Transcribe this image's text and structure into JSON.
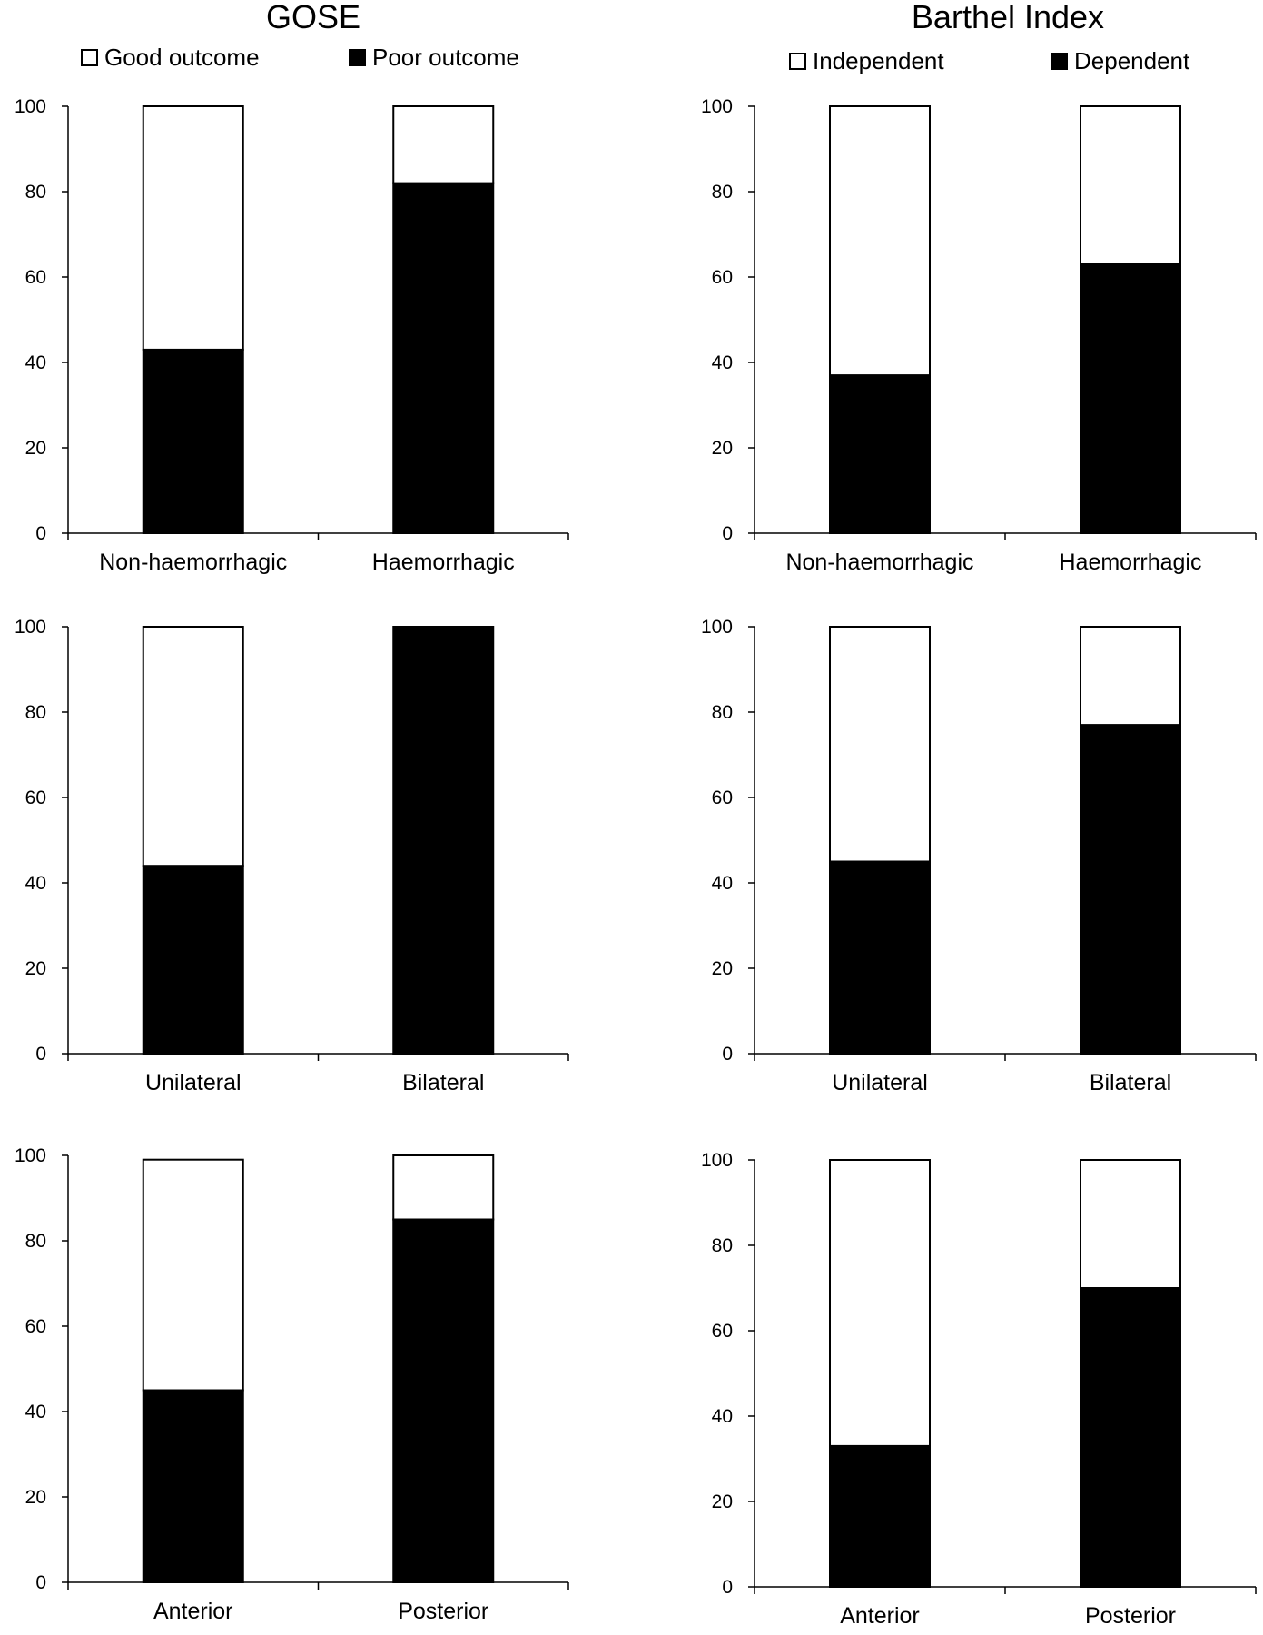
{
  "titles": {
    "gose": "GOSE",
    "barthel": "Barthel Index"
  },
  "legends": {
    "gose": [
      {
        "label": "Good outcome",
        "fill": "#ffffff"
      },
      {
        "label": "Poor outcome",
        "fill": "#000000"
      }
    ],
    "barthel": [
      {
        "label": "Independent",
        "fill": "#ffffff"
      },
      {
        "label": "Dependent",
        "fill": "#000000"
      }
    ]
  },
  "chart_data": [
    {
      "type": "bar",
      "stacked": true,
      "group": "GOSE",
      "categories": [
        "Non-haemorrhagic",
        "Haemorrhagic"
      ],
      "series": [
        {
          "name": "Poor outcome",
          "values": [
            43,
            82
          ]
        },
        {
          "name": "Good outcome",
          "values": [
            57,
            18
          ]
        }
      ],
      "ylim": [
        0,
        100
      ],
      "yticks": [
        0,
        20,
        40,
        60,
        80,
        100
      ]
    },
    {
      "type": "bar",
      "stacked": true,
      "group": "Barthel Index",
      "categories": [
        "Non-haemorrhagic",
        "Haemorrhagic"
      ],
      "series": [
        {
          "name": "Dependent",
          "values": [
            37,
            63
          ]
        },
        {
          "name": "Independent",
          "values": [
            63,
            37
          ]
        }
      ],
      "ylim": [
        0,
        100
      ],
      "yticks": [
        0,
        20,
        40,
        60,
        80,
        100
      ]
    },
    {
      "type": "bar",
      "stacked": true,
      "group": "GOSE",
      "categories": [
        "Unilateral",
        "Bilateral"
      ],
      "series": [
        {
          "name": "Poor outcome",
          "values": [
            44,
            100
          ]
        },
        {
          "name": "Good outcome",
          "values": [
            56,
            0
          ]
        }
      ],
      "ylim": [
        0,
        100
      ],
      "yticks": [
        0,
        20,
        40,
        60,
        80,
        100
      ]
    },
    {
      "type": "bar",
      "stacked": true,
      "group": "Barthel Index",
      "categories": [
        "Unilateral",
        "Bilateral"
      ],
      "series": [
        {
          "name": "Dependent",
          "values": [
            45,
            77
          ]
        },
        {
          "name": "Independent",
          "values": [
            55,
            23
          ]
        }
      ],
      "ylim": [
        0,
        100
      ],
      "yticks": [
        0,
        20,
        40,
        60,
        80,
        100
      ]
    },
    {
      "type": "bar",
      "stacked": true,
      "group": "GOSE",
      "categories": [
        "Anterior",
        "Posterior"
      ],
      "series": [
        {
          "name": "Poor outcome",
          "values": [
            45,
            85
          ]
        },
        {
          "name": "Good outcome",
          "values": [
            54,
            15
          ]
        }
      ],
      "ylim": [
        0,
        100
      ],
      "yticks": [
        0,
        20,
        40,
        60,
        80,
        100
      ]
    },
    {
      "type": "bar",
      "stacked": true,
      "group": "Barthel Index",
      "categories": [
        "Anterior",
        "Posterior"
      ],
      "series": [
        {
          "name": "Dependent",
          "values": [
            33,
            70
          ]
        },
        {
          "name": "Independent",
          "values": [
            67,
            30
          ]
        }
      ],
      "ylim": [
        0,
        100
      ],
      "yticks": [
        0,
        20,
        40,
        60,
        80,
        100
      ]
    }
  ]
}
